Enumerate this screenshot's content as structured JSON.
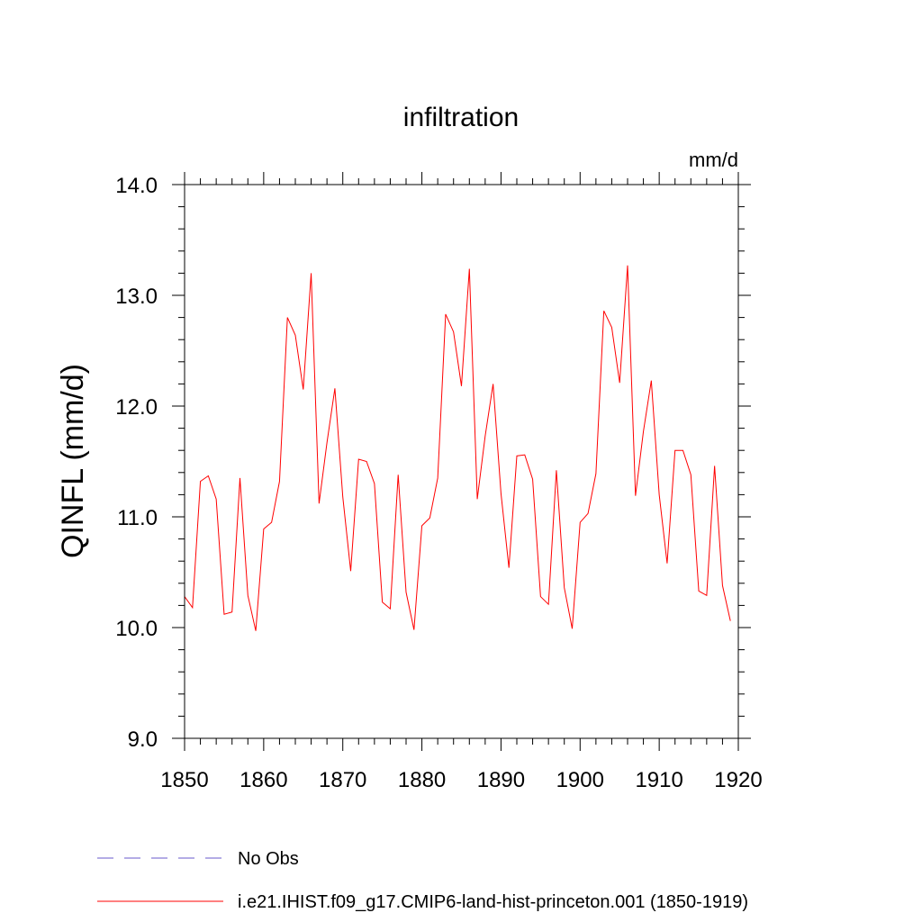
{
  "chart_data": {
    "type": "line",
    "title": "infiltration",
    "units": "mm/d",
    "xlabel": "",
    "ylabel": "QINFL  (mm/d)",
    "xlim": [
      1850,
      1920
    ],
    "ylim": [
      9.0,
      14.0
    ],
    "x_ticks": [
      1850,
      1860,
      1870,
      1880,
      1890,
      1900,
      1910,
      1920
    ],
    "x_tick_labels": [
      "1850",
      "1860",
      "1870",
      "1880",
      "1890",
      "1900",
      "1910",
      "1920"
    ],
    "y_ticks": [
      9.0,
      10.0,
      11.0,
      12.0,
      13.0,
      14.0
    ],
    "y_tick_labels": [
      "9.0",
      "10.0",
      "11.0",
      "12.0",
      "13.0",
      "14.0"
    ],
    "grid": false,
    "legend_position": "bottom",
    "series": [
      {
        "name": "No Obs",
        "color": "#6a5acd",
        "dash": "dashed",
        "x": [],
        "y": []
      },
      {
        "name": "i.e21.IHIST.f09_g17.CMIP6-land-hist-princeton.001 (1850-1919)",
        "color": "#ff0000",
        "dash": "solid",
        "x": [
          1850,
          1851,
          1852,
          1853,
          1854,
          1855,
          1856,
          1857,
          1858,
          1859,
          1860,
          1861,
          1862,
          1863,
          1864,
          1865,
          1866,
          1867,
          1868,
          1869,
          1870,
          1871,
          1872,
          1873,
          1874,
          1875,
          1876,
          1877,
          1878,
          1879,
          1880,
          1881,
          1882,
          1883,
          1884,
          1885,
          1886,
          1887,
          1888,
          1889,
          1890,
          1891,
          1892,
          1893,
          1894,
          1895,
          1896,
          1897,
          1898,
          1899,
          1900,
          1901,
          1902,
          1903,
          1904,
          1905,
          1906,
          1907,
          1908,
          1909,
          1910,
          1911,
          1912,
          1913,
          1914,
          1915,
          1916,
          1917,
          1918,
          1919
        ],
        "y": [
          10.28,
          10.18,
          11.32,
          11.37,
          11.16,
          10.12,
          10.14,
          11.35,
          10.29,
          9.97,
          10.89,
          10.95,
          11.32,
          12.8,
          12.64,
          12.15,
          13.2,
          11.12,
          11.67,
          12.16,
          11.18,
          10.51,
          11.52,
          11.5,
          11.3,
          10.23,
          10.17,
          11.38,
          10.32,
          9.98,
          10.92,
          10.99,
          11.35,
          12.83,
          12.67,
          12.18,
          13.24,
          11.16,
          11.73,
          12.2,
          11.21,
          10.54,
          11.55,
          11.56,
          11.34,
          10.28,
          10.21,
          11.42,
          10.36,
          9.99,
          10.95,
          11.03,
          11.39,
          12.86,
          12.71,
          12.21,
          13.27,
          11.19,
          11.77,
          12.23,
          11.2,
          10.58,
          11.6,
          11.6,
          11.38,
          10.33,
          10.29,
          11.46,
          10.38,
          10.06
        ]
      }
    ]
  }
}
